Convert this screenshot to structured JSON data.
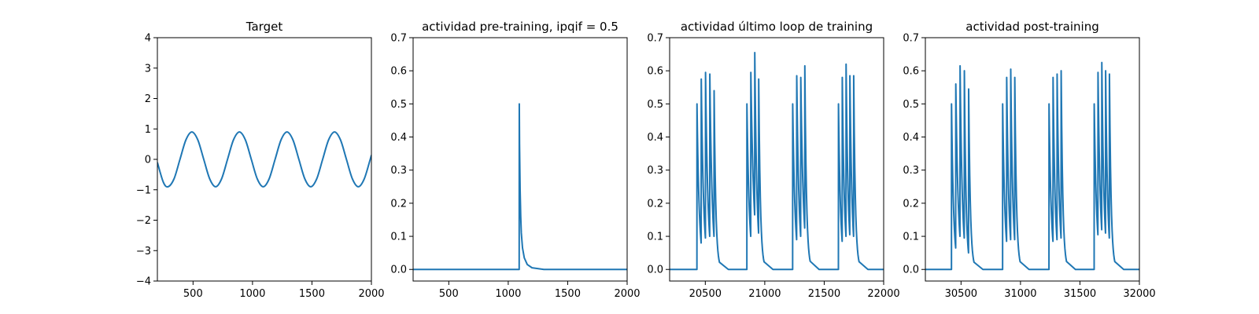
{
  "chart_data": [
    {
      "type": "line",
      "title": "Target",
      "xlim": [
        200,
        2000
      ],
      "ylim": [
        -4,
        4
      ],
      "xticks": [
        500,
        1000,
        1500,
        2000
      ],
      "xtick_labels": [
        "500",
        "1000",
        "1500",
        "2000"
      ],
      "yticks": [
        -4,
        -3,
        -2,
        -1,
        0,
        1,
        2,
        3,
        4
      ],
      "ytick_labels": [
        "−4",
        "−3",
        "−2",
        "−1",
        "0",
        "1",
        "2",
        "3",
        "4"
      ],
      "grid": false,
      "color": "#1f77b4",
      "series": [
        {
          "x": [
            200,
            250,
            290,
            340,
            390,
            440,
            490,
            540,
            590,
            640,
            690,
            740,
            790,
            840,
            890,
            940,
            990,
            1040,
            1090,
            1140,
            1190,
            1240,
            1290,
            1340,
            1390,
            1440,
            1490,
            1540,
            1590,
            1640,
            1690,
            1740,
            1790,
            1840,
            1890,
            1940,
            1990,
            2000
          ],
          "y": [
            -0.1,
            -0.75,
            -0.9,
            -0.64,
            0.0,
            0.64,
            0.9,
            0.64,
            0.0,
            -0.64,
            -0.9,
            -0.64,
            0.0,
            0.64,
            0.9,
            0.64,
            0.0,
            -0.64,
            -0.9,
            -0.64,
            0.0,
            0.64,
            0.9,
            0.64,
            0.0,
            -0.64,
            -0.9,
            -0.64,
            0.0,
            0.64,
            0.9,
            0.64,
            0.0,
            -0.64,
            -0.9,
            -0.64,
            0.0,
            0.14
          ]
        }
      ]
    },
    {
      "type": "line",
      "title": "actividad pre-training, ipqif = 0.5",
      "xlim": [
        200,
        2000
      ],
      "ylim": [
        -0.035,
        0.7
      ],
      "xticks": [
        500,
        1000,
        1500,
        2000
      ],
      "xtick_labels": [
        "500",
        "1000",
        "1500",
        "2000"
      ],
      "yticks": [
        0.0,
        0.1,
        0.2,
        0.3,
        0.4,
        0.5,
        0.6,
        0.7
      ],
      "ytick_labels": [
        "0.0",
        "0.1",
        "0.2",
        "0.3",
        "0.4",
        "0.5",
        "0.6",
        "0.7"
      ],
      "grid": false,
      "color": "#1f77b4",
      "series": [
        {
          "x": [
            200,
            1092,
            1093,
            1095,
            1100,
            1105,
            1110,
            1120,
            1135,
            1160,
            1200,
            1300,
            2000
          ],
          "y": [
            0.0,
            0.0,
            0.5,
            0.38,
            0.24,
            0.16,
            0.11,
            0.065,
            0.035,
            0.015,
            0.005,
            0.0,
            0.0
          ]
        }
      ]
    },
    {
      "type": "line",
      "title": "actividad último loop de training",
      "xlim": [
        20200,
        22000
      ],
      "ylim": [
        -0.035,
        0.7
      ],
      "xticks": [
        20500,
        21000,
        21500,
        22000
      ],
      "xtick_labels": [
        "20500",
        "21000",
        "21500",
        "22000"
      ],
      "yticks": [
        0.0,
        0.1,
        0.2,
        0.3,
        0.4,
        0.5,
        0.6,
        0.7
      ],
      "ytick_labels": [
        "0.0",
        "0.1",
        "0.2",
        "0.3",
        "0.4",
        "0.5",
        "0.6",
        "0.7"
      ],
      "grid": false,
      "color": "#1f77b4",
      "bursts": [
        {
          "onset": 20430,
          "peaks": [
            0.5,
            0.575,
            0.595,
            0.59,
            0.54
          ],
          "spacing": 36,
          "troughs": [
            0.08,
            0.095,
            0.1,
            0.1
          ],
          "decay_to_zero": 120
        },
        {
          "onset": 20850,
          "peaks": [
            0.5,
            0.595,
            0.655,
            0.575
          ],
          "spacing": 33,
          "troughs": [
            0.1,
            0.165,
            0.11
          ],
          "decay_to_zero": 120
        },
        {
          "onset": 21235,
          "peaks": [
            0.5,
            0.585,
            0.58,
            0.615
          ],
          "spacing": 34,
          "troughs": [
            0.09,
            0.1,
            0.125
          ],
          "decay_to_zero": 120
        },
        {
          "onset": 21620,
          "peaks": [
            0.5,
            0.58,
            0.62,
            0.585,
            0.585
          ],
          "spacing": 32,
          "troughs": [
            0.085,
            0.1,
            0.105,
            0.1
          ],
          "decay_to_zero": 120
        }
      ]
    },
    {
      "type": "line",
      "title": "actividad post-training",
      "xlim": [
        30200,
        32000
      ],
      "ylim": [
        -0.035,
        0.7
      ],
      "xticks": [
        30500,
        31000,
        31500,
        32000
      ],
      "xtick_labels": [
        "30500",
        "31000",
        "31500",
        "32000"
      ],
      "yticks": [
        0.0,
        0.1,
        0.2,
        0.3,
        0.4,
        0.5,
        0.6,
        0.7
      ],
      "ytick_labels": [
        "0.0",
        "0.1",
        "0.2",
        "0.3",
        "0.4",
        "0.5",
        "0.6",
        "0.7"
      ],
      "grid": false,
      "color": "#1f77b4",
      "bursts": [
        {
          "onset": 30420,
          "peaks": [
            0.5,
            0.56,
            0.615,
            0.6,
            0.545
          ],
          "spacing": 36,
          "troughs": [
            0.065,
            0.1,
            0.095,
            0.05
          ],
          "decay_to_zero": 120
        },
        {
          "onset": 30850,
          "peaks": [
            0.5,
            0.58,
            0.605,
            0.58
          ],
          "spacing": 34,
          "troughs": [
            0.085,
            0.09,
            0.09
          ],
          "decay_to_zero": 120
        },
        {
          "onset": 31240,
          "peaks": [
            0.5,
            0.58,
            0.59,
            0.6
          ],
          "spacing": 34,
          "troughs": [
            0.085,
            0.09,
            0.095
          ],
          "decay_to_zero": 120
        },
        {
          "onset": 31620,
          "peaks": [
            0.5,
            0.595,
            0.625,
            0.6,
            0.59
          ],
          "spacing": 32,
          "troughs": [
            0.105,
            0.12,
            0.11,
            0.095
          ],
          "decay_to_zero": 120
        }
      ]
    }
  ]
}
